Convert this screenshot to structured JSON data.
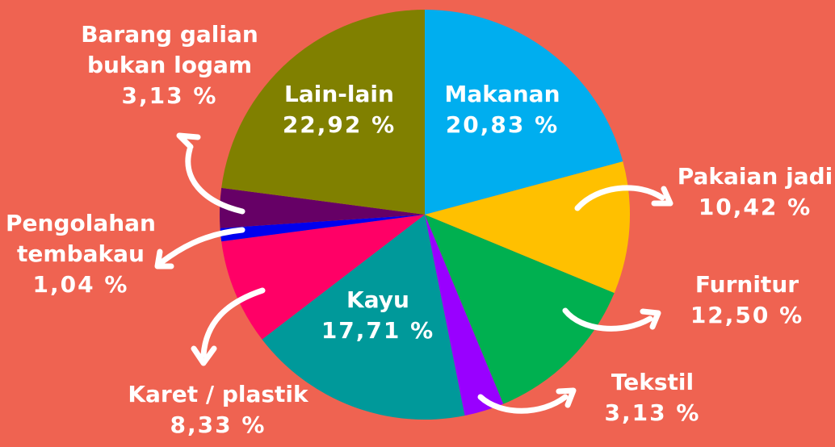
{
  "chart_data": {
    "type": "pie",
    "categories": [
      "Makanan",
      "Pakaian jadi",
      "Furnitur",
      "Tekstil",
      "Kayu",
      "Karet / plastik",
      "Pengolahan tembakau",
      "Barang galian bukan logam",
      "Lain-lain"
    ],
    "values": [
      20.83,
      10.42,
      12.5,
      3.13,
      17.71,
      8.33,
      1.04,
      3.13,
      22.92
    ],
    "value_labels": [
      "20,83 %",
      "10,42 %",
      "12,50 %",
      "3,13 %",
      "17,71 %",
      "8,33 %",
      "1,04 %",
      "3,13 %",
      "22,92 %"
    ],
    "colors": [
      "#00aeef",
      "#ffc000",
      "#00b050",
      "#9900ff",
      "#00999a",
      "#ff0066",
      "#0000ee",
      "#660066",
      "#808000"
    ]
  }
}
